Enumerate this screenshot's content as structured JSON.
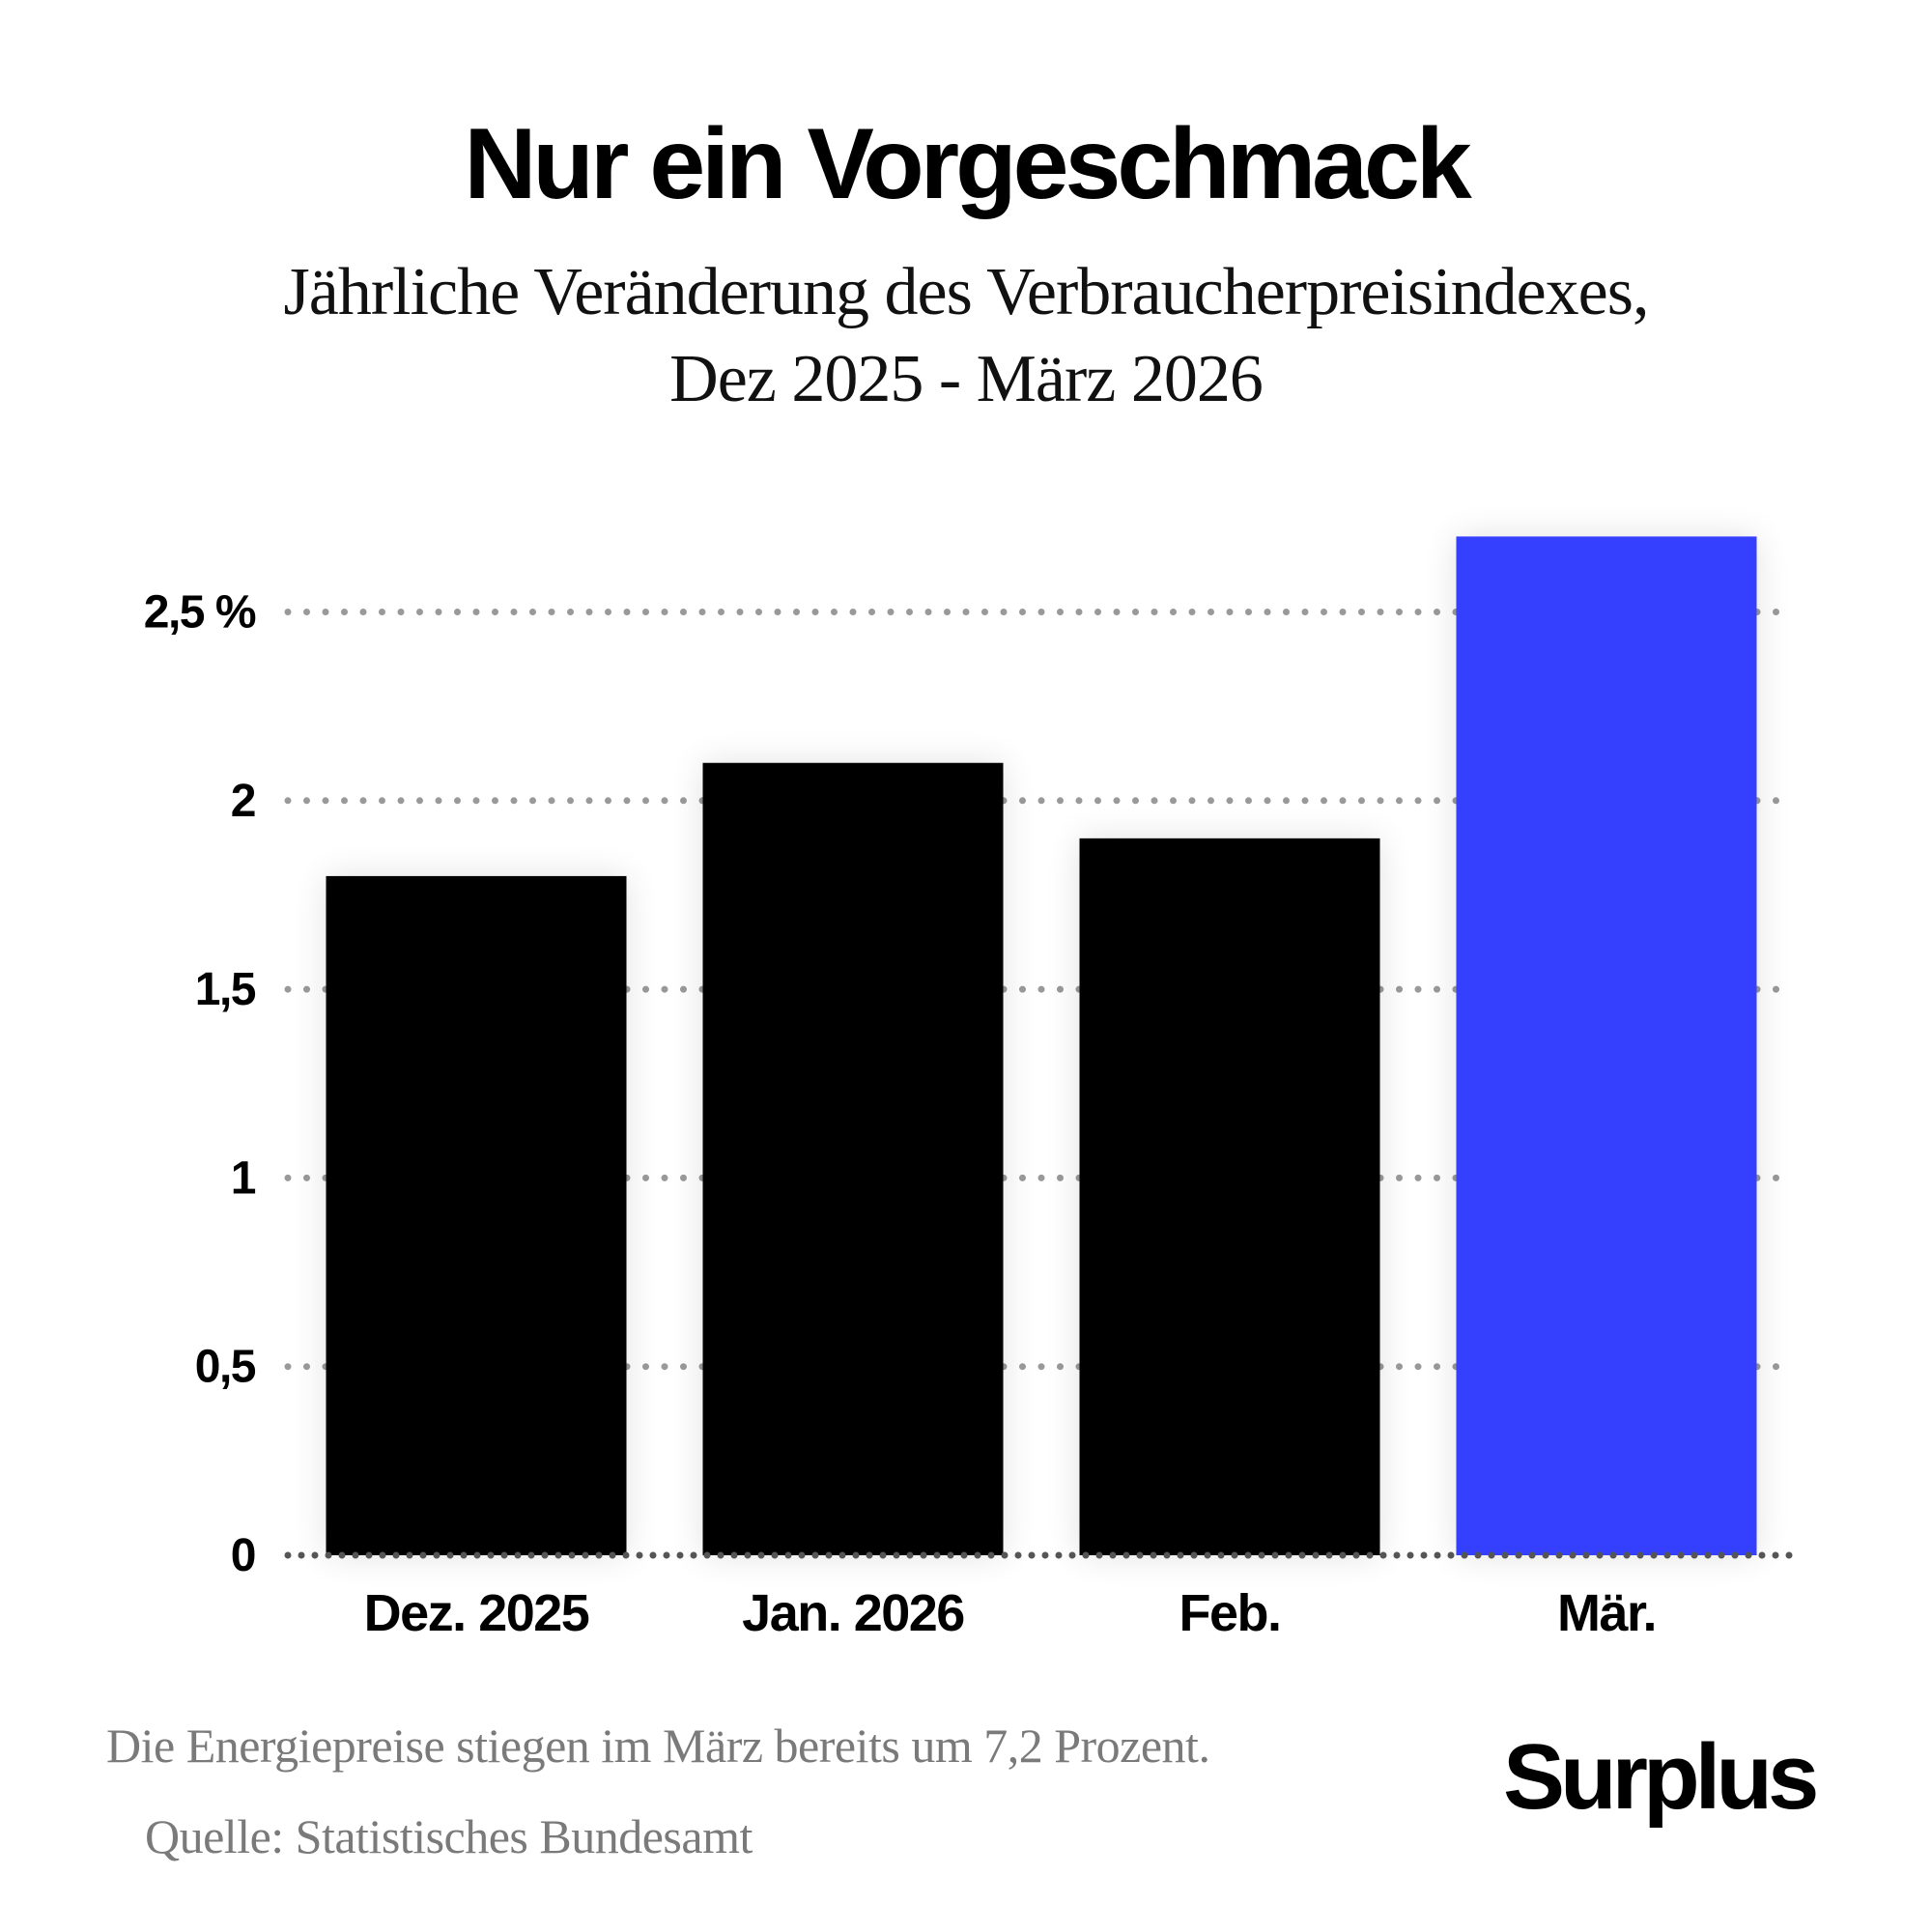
{
  "header": {
    "title": "Nur ein Vorgeschmack",
    "subtitle_line1": "Jährliche Veränderung des Verbraucherpreisindexes,",
    "subtitle_line2": "Dez 2025 - März 2026"
  },
  "footer": {
    "note": "Die Energiepreise stiegen im März bereits um 7,2 Prozent.",
    "source": "Quelle: Statistisches Bundesamt",
    "logo": "Surplus"
  },
  "colors": {
    "bar_default": "#000000",
    "bar_highlight": "#3540ff",
    "gridline": "#999999",
    "baseline": "#555555"
  },
  "chart_data": {
    "type": "bar",
    "title": "Nur ein Vorgeschmack",
    "subtitle": "Jährliche Veränderung des Verbraucherpreisindexes, Dez 2025 - März 2026",
    "xlabel": "",
    "ylabel": "",
    "categories": [
      "Dez. 2025",
      "Jan. 2026",
      "Feb.",
      "Mär."
    ],
    "values": [
      1.8,
      2.1,
      1.9,
      2.7
    ],
    "highlight_index": 3,
    "ylim": [
      0,
      2.7
    ],
    "yticks": [
      0,
      0.5,
      1,
      1.5,
      2,
      2.5
    ],
    "ytick_labels": [
      "0",
      "0,5",
      "1",
      "1,5",
      "2",
      "2,5 %"
    ],
    "grid": true,
    "grid_style": "dotted",
    "legend": "none"
  }
}
